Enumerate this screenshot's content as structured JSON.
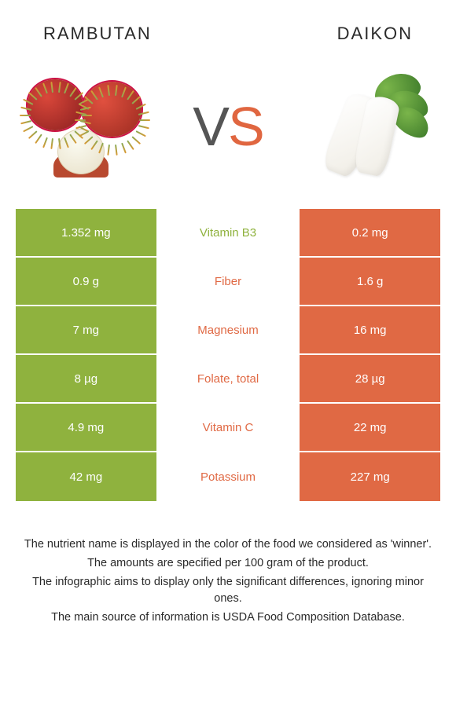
{
  "colors": {
    "left": "#8fb23e",
    "right": "#e06944",
    "row_border": "#ffffff"
  },
  "header": {
    "left_title": "RAMBUTAN",
    "right_title": "DAIKON"
  },
  "vs": {
    "v": "V",
    "s": "S"
  },
  "rows": [
    {
      "left": "1.352 mg",
      "mid": "Vitamin B3",
      "right": "0.2 mg",
      "winner": "left"
    },
    {
      "left": "0.9 g",
      "mid": "Fiber",
      "right": "1.6 g",
      "winner": "right"
    },
    {
      "left": "7 mg",
      "mid": "Magnesium",
      "right": "16 mg",
      "winner": "right"
    },
    {
      "left": "8 µg",
      "mid": "Folate, total",
      "right": "28 µg",
      "winner": "right"
    },
    {
      "left": "4.9 mg",
      "mid": "Vitamin C",
      "right": "22 mg",
      "winner": "right"
    },
    {
      "left": "42 mg",
      "mid": "Potassium",
      "right": "227 mg",
      "winner": "right"
    }
  ],
  "footer": {
    "l1": "The nutrient name is displayed in the color of the food we considered as 'winner'.",
    "l2": "The amounts are specified per 100 gram of the product.",
    "l3": "The infographic aims to display only the significant differences, ignoring minor ones.",
    "l4": "The main source of information is USDA Food Composition Database."
  }
}
